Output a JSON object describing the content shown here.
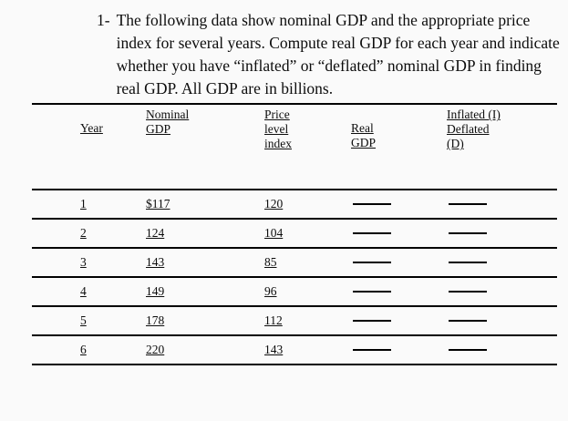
{
  "question": {
    "number": "1-",
    "text": "The following data show nominal GDP and the appropriate price index for several years.  Compute real GDP for each year and indicate whether you have “inflated” or “deflated” nominal GDP in finding real GDP.  All GDP are in billions."
  },
  "table": {
    "headers": {
      "year": "Year",
      "nominal_gdp": [
        "Nominal",
        "GDP"
      ],
      "price_level_index": [
        "Price",
        "level",
        "index"
      ],
      "real_gdp": [
        "Real",
        "GDP"
      ],
      "inflated_deflated": [
        "Inflated (I)",
        "Deflated",
        "(D)"
      ]
    },
    "rows": [
      {
        "year": "1",
        "nominal_gdp": "$117",
        "price_index": "120"
      },
      {
        "year": "2",
        "nominal_gdp": "124",
        "price_index": "104"
      },
      {
        "year": "3",
        "nominal_gdp": "143",
        "price_index": "85"
      },
      {
        "year": "4",
        "nominal_gdp": "149",
        "price_index": "96"
      },
      {
        "year": "5",
        "nominal_gdp": "178",
        "price_index": "112"
      },
      {
        "year": "6",
        "nominal_gdp": "220",
        "price_index": "143"
      }
    ]
  }
}
